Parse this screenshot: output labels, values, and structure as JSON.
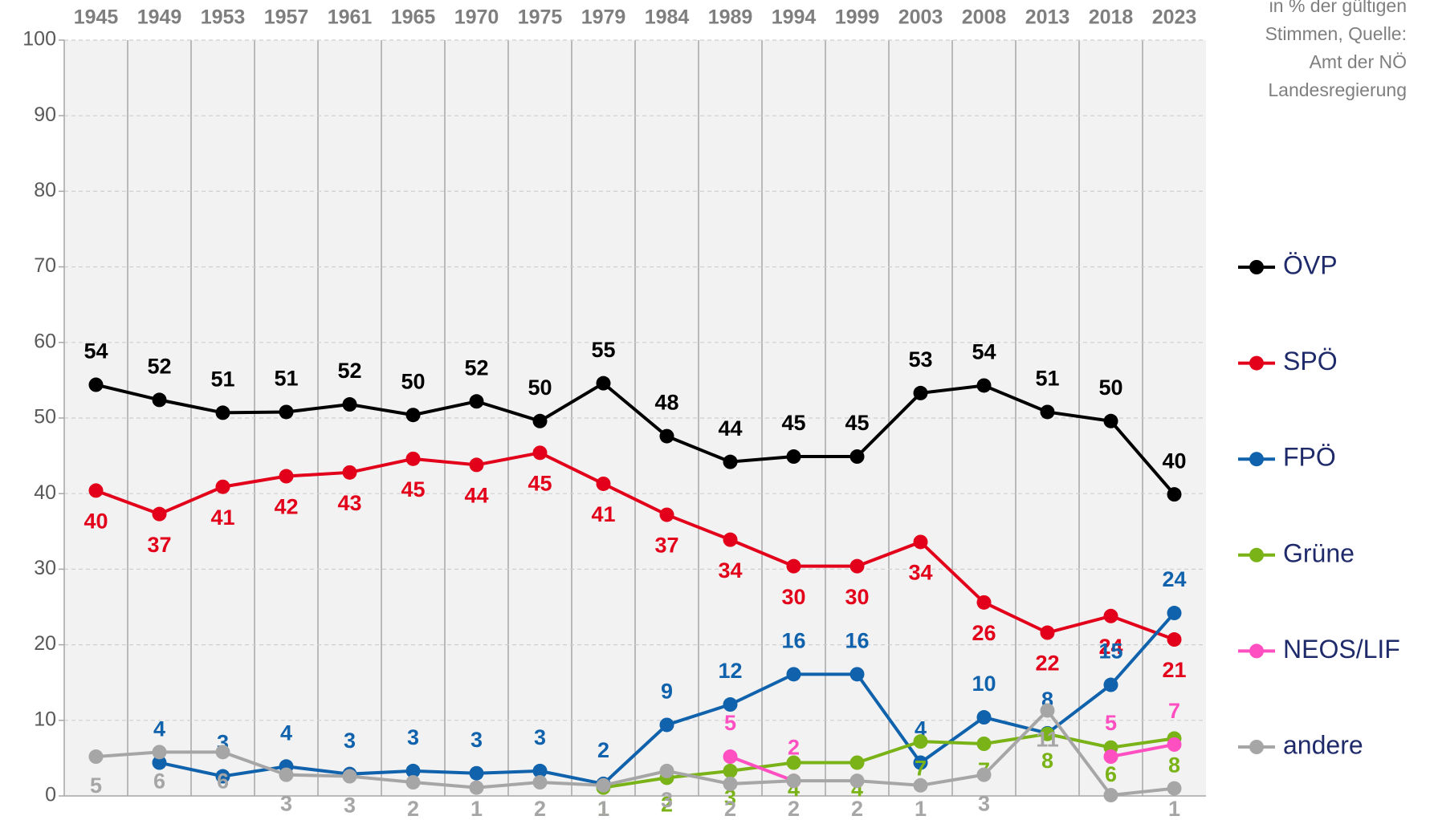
{
  "chart_data": {
    "type": "line",
    "annotation": [
      "in % der gültigen",
      "Stimmen, Quelle:",
      "Amt der NÖ",
      "Landesregierung"
    ],
    "categories": [
      "1945",
      "1949",
      "1953",
      "1957",
      "1961",
      "1965",
      "1970",
      "1975",
      "1979",
      "1984",
      "1989",
      "1994",
      "1999",
      "2003",
      "2008",
      "2013",
      "2018",
      "2023"
    ],
    "ylim": [
      0,
      100
    ],
    "yticks": [
      0,
      10,
      20,
      30,
      40,
      50,
      60,
      70,
      80,
      90,
      100
    ],
    "grid": true,
    "legend": "right",
    "series": [
      {
        "name": "ÖVP",
        "color": "#000000",
        "values": [
          54.4,
          52.4,
          50.7,
          50.8,
          51.8,
          50.4,
          52.2,
          49.6,
          54.6,
          47.6,
          44.2,
          44.9,
          44.9,
          53.3,
          54.3,
          50.8,
          49.6,
          39.9
        ],
        "value_labels": [
          "54",
          "52",
          "51",
          "51",
          "52",
          "50",
          "52",
          "50",
          "55",
          "48",
          "44",
          "45",
          "45",
          "53",
          "54",
          "51",
          "50",
          "40"
        ]
      },
      {
        "name": "SPÖ",
        "color": "#e2001a",
        "values": [
          40.4,
          37.3,
          40.9,
          42.3,
          42.8,
          44.6,
          43.8,
          45.4,
          41.3,
          37.2,
          33.9,
          30.4,
          30.4,
          33.6,
          25.6,
          21.6,
          23.8,
          20.7
        ],
        "value_labels": [
          "40",
          "37",
          "41",
          "42",
          "43",
          "45",
          "44",
          "45",
          "41",
          "37",
          "34",
          "30",
          "30",
          "34",
          "26",
          "22",
          "24",
          "21"
        ]
      },
      {
        "name": "FPÖ",
        "color": "#0f62ab",
        "values": [
          null,
          4.4,
          2.6,
          3.9,
          2.9,
          3.3,
          3.0,
          3.3,
          1.6,
          9.4,
          12.1,
          16.1,
          16.1,
          4.4,
          10.4,
          8.3,
          14.7,
          24.2
        ],
        "value_labels": [
          null,
          "4",
          "3",
          "4",
          "3",
          "3",
          "3",
          "3",
          "2",
          "9",
          "12",
          "16",
          "16",
          "4",
          "10",
          "8",
          "15",
          "24"
        ]
      },
      {
        "name": "Grüne",
        "color": "#7ab317",
        "values": [
          null,
          null,
          null,
          null,
          null,
          null,
          null,
          null,
          1.1,
          2.4,
          3.3,
          4.4,
          4.4,
          7.2,
          6.9,
          8.2,
          6.4,
          7.6
        ],
        "value_labels": [
          null,
          null,
          null,
          null,
          null,
          null,
          null,
          null,
          "1",
          "2",
          "3",
          "4",
          "4",
          "7",
          "7",
          "8",
          "6",
          "8"
        ]
      },
      {
        "name": "NEOS/LIF",
        "color": "#ff4fc1",
        "values": [
          null,
          null,
          null,
          null,
          null,
          null,
          null,
          null,
          null,
          null,
          5.2,
          2.0,
          null,
          null,
          null,
          null,
          5.2,
          6.8
        ],
        "value_labels": [
          null,
          null,
          null,
          null,
          null,
          null,
          null,
          null,
          null,
          null,
          "5",
          "2",
          null,
          null,
          null,
          null,
          "5",
          "7"
        ]
      },
      {
        "name": "andere",
        "color": "#a6a6a6",
        "values": [
          5.2,
          5.8,
          5.8,
          2.8,
          2.6,
          1.8,
          1.1,
          1.8,
          1.4,
          3.3,
          1.6,
          2.0,
          2.0,
          1.4,
          2.8,
          11.3,
          0.1,
          1.0
        ],
        "value_labels": [
          "5",
          "6",
          "6",
          "3",
          "3",
          "2",
          "1",
          "2",
          "1",
          "3",
          "2",
          "2",
          "2",
          "1",
          "3",
          "11",
          null,
          "1"
        ]
      }
    ]
  }
}
